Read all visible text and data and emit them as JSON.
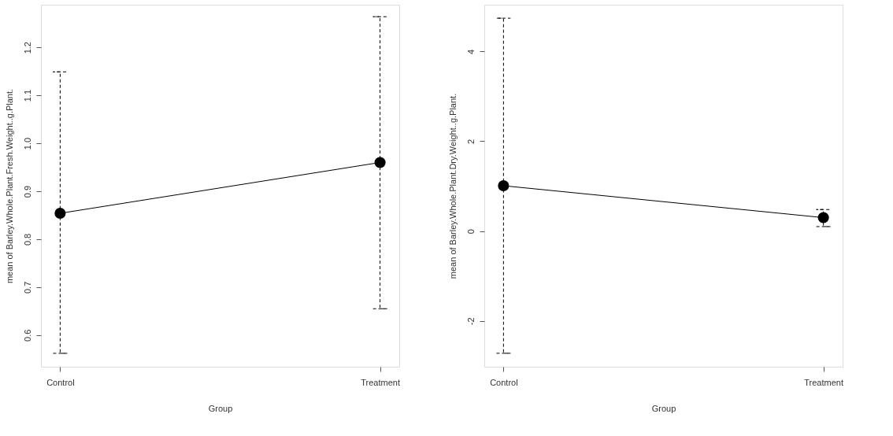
{
  "chart_data": [
    {
      "type": "line",
      "categories": [
        "Control",
        "Treatment"
      ],
      "xlabel": "Group",
      "ylabel": "mean of Barley.Whole.Plant.Fresh.Weight..g.Plant.",
      "ylim": [
        0.534,
        1.289
      ],
      "yticks": [
        0.6,
        0.7,
        0.8,
        0.9,
        {
          "value": 1,
          "label": "1.0"
        },
        1.1,
        1.2
      ],
      "grid": false,
      "marker": "circle",
      "line_style": "solid",
      "series": [
        {
          "color": "#000000",
          "values": [
            0.854,
            0.96
          ],
          "errors": [
            [
              0.562,
              1.149
            ],
            [
              0.655,
              1.264
            ]
          ]
        }
      ]
    },
    {
      "type": "line",
      "categories": [
        "Control",
        "Treatment"
      ],
      "xlabel": "Group",
      "ylabel": "mean of Barley.Whole.Plant.Dry.Weight..g.Plant.",
      "ylim": [
        -3.02,
        5.04
      ],
      "yticks": [
        -2,
        0,
        2,
        4
      ],
      "grid": false,
      "marker": "circle",
      "line_style": "solid",
      "series": [
        {
          "color": "#000000",
          "values": [
            1.01,
            0.3
          ],
          "errors": [
            [
              -2.72,
              4.74
            ],
            [
              0.1,
              0.48
            ]
          ]
        }
      ]
    }
  ]
}
